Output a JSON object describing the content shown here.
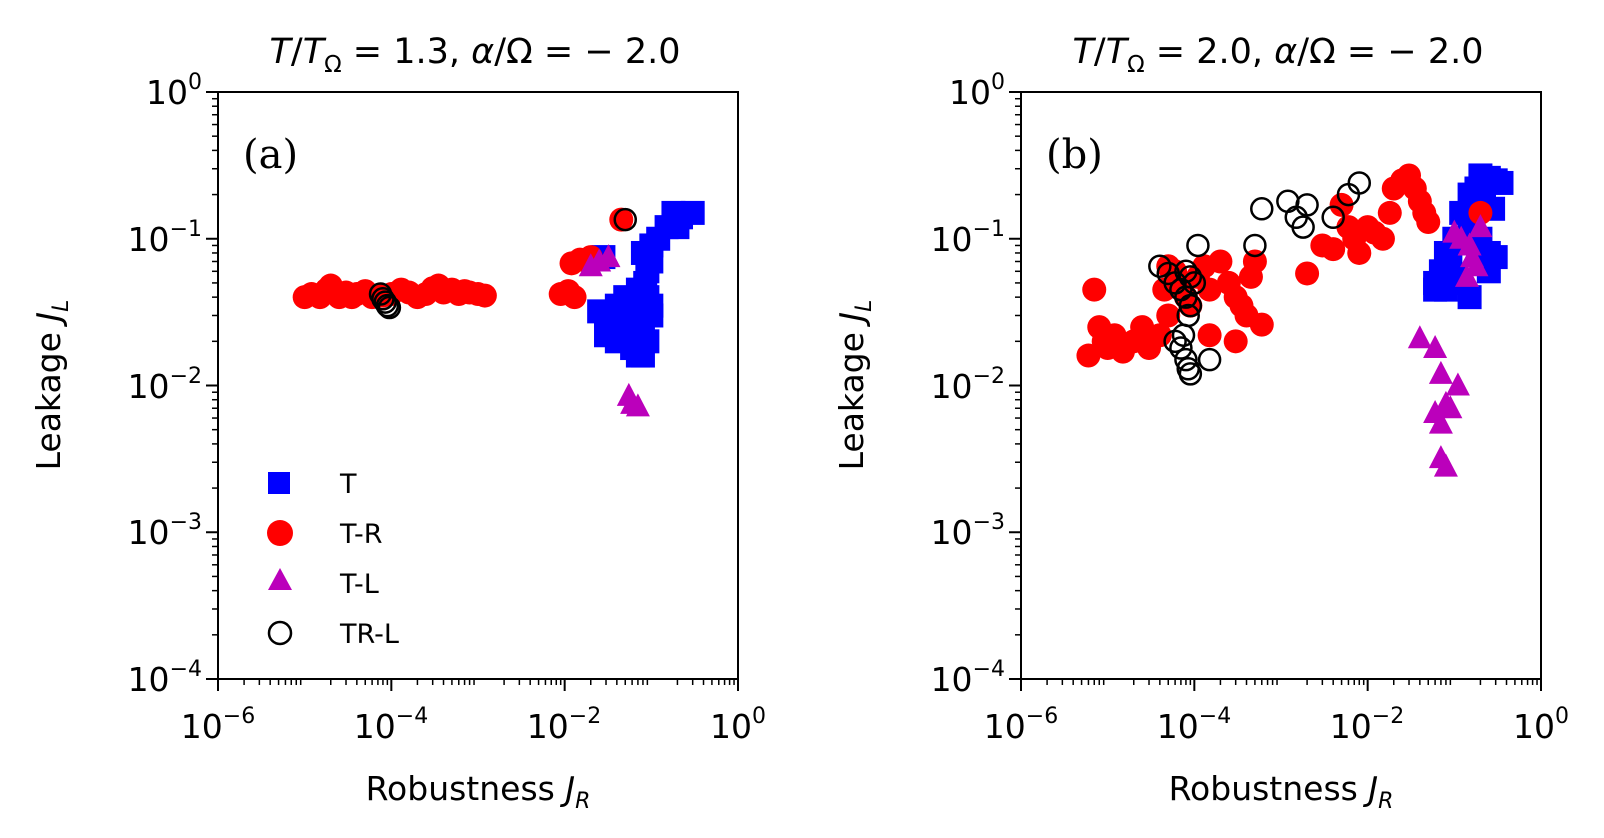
{
  "chart_data": [
    {
      "type": "scatter",
      "id": "a",
      "title_parts": {
        "t1": "T",
        "t2": "/",
        "t3": "T",
        "t3sub": "Ω",
        "t4": " = 1.3, ",
        "t5": "α",
        "t6": "/Ω = − 2.0"
      },
      "panel_label": "(a)",
      "xlabel_text": "Robustness ",
      "xlabel_var": "J",
      "xlabel_sub": "R",
      "ylabel_text": "Leakage ",
      "ylabel_var": "J",
      "ylabel_sub": "L",
      "xscale": "log",
      "yscale": "log",
      "xlim": [
        1e-06,
        1
      ],
      "ylim": [
        0.0001,
        1
      ],
      "x_ticks": [
        {
          "base": "10",
          "exp": "−6",
          "value": 1e-06
        },
        {
          "base": "10",
          "exp": "−4",
          "value": 0.0001
        },
        {
          "base": "10",
          "exp": "−2",
          "value": 0.01
        },
        {
          "base": "10",
          "exp": "0",
          "value": 1
        }
      ],
      "y_ticks": [
        {
          "base": "10",
          "exp": "−4",
          "value": 0.0001
        },
        {
          "base": "10",
          "exp": "−3",
          "value": 0.001
        },
        {
          "base": "10",
          "exp": "−2",
          "value": 0.01
        },
        {
          "base": "10",
          "exp": "−1",
          "value": 0.1
        },
        {
          "base": "10",
          "exp": "0",
          "value": 1
        }
      ],
      "legend_position": "lower-left",
      "series": [
        {
          "name": "T",
          "marker": "square",
          "color": "#0000ff",
          "filled": true,
          "points": [
            [
              0.3,
              0.15
            ],
            [
              0.22,
              0.14
            ],
            [
              0.18,
              0.15
            ],
            [
              0.2,
              0.12
            ],
            [
              0.15,
              0.12
            ],
            [
              0.12,
              0.1
            ],
            [
              0.1,
              0.09
            ],
            [
              0.1,
              0.07
            ],
            [
              0.08,
              0.08
            ],
            [
              0.09,
              0.06
            ],
            [
              0.085,
              0.05
            ],
            [
              0.07,
              0.045
            ],
            [
              0.09,
              0.04
            ],
            [
              0.1,
              0.035
            ],
            [
              0.05,
              0.04
            ],
            [
              0.04,
              0.035
            ],
            [
              0.03,
              0.03
            ],
            [
              0.025,
              0.032
            ],
            [
              0.035,
              0.028
            ],
            [
              0.05,
              0.03
            ],
            [
              0.06,
              0.025
            ],
            [
              0.07,
              0.022
            ],
            [
              0.08,
              0.028
            ],
            [
              0.1,
              0.03
            ],
            [
              0.03,
              0.022
            ],
            [
              0.04,
              0.02
            ],
            [
              0.06,
              0.018
            ],
            [
              0.07,
              0.016
            ],
            [
              0.08,
              0.016
            ],
            [
              0.09,
              0.02
            ],
            [
              0.028,
              0.075
            ]
          ]
        },
        {
          "name": "T-R",
          "marker": "circle",
          "color": "#ff0000",
          "filled": true,
          "points": [
            [
              1e-05,
              0.04
            ],
            [
              1.2e-05,
              0.042
            ],
            [
              1.5e-05,
              0.04
            ],
            [
              1.8e-05,
              0.045
            ],
            [
              2e-05,
              0.048
            ],
            [
              2.5e-05,
              0.04
            ],
            [
              3e-05,
              0.043
            ],
            [
              3.5e-05,
              0.04
            ],
            [
              4e-05,
              0.042
            ],
            [
              5e-05,
              0.044
            ],
            [
              6e-05,
              0.04
            ],
            [
              8e-05,
              0.041
            ],
            [
              0.0001,
              0.042
            ],
            [
              0.00013,
              0.045
            ],
            [
              0.00016,
              0.043
            ],
            [
              0.0002,
              0.04
            ],
            [
              0.00025,
              0.042
            ],
            [
              0.0003,
              0.046
            ],
            [
              0.00035,
              0.048
            ],
            [
              0.0004,
              0.043
            ],
            [
              0.0005,
              0.045
            ],
            [
              0.0006,
              0.042
            ],
            [
              0.0007,
              0.044
            ],
            [
              0.0008,
              0.043
            ],
            [
              0.001,
              0.042
            ],
            [
              0.0012,
              0.041
            ],
            [
              0.009,
              0.042
            ],
            [
              0.011,
              0.044
            ],
            [
              0.013,
              0.04
            ],
            [
              0.012,
              0.068
            ],
            [
              0.015,
              0.072
            ],
            [
              0.02,
              0.075
            ],
            [
              0.045,
              0.135
            ]
          ]
        },
        {
          "name": "T-L",
          "marker": "triangle",
          "color": "#bb00bb",
          "filled": true,
          "points": [
            [
              0.02,
              0.065
            ],
            [
              0.025,
              0.07
            ],
            [
              0.032,
              0.075
            ],
            [
              0.055,
              0.0085
            ],
            [
              0.06,
              0.0075
            ],
            [
              0.07,
              0.0072
            ]
          ]
        },
        {
          "name": "TR-L",
          "marker": "circle",
          "color": "#000000",
          "filled": false,
          "points": [
            [
              7.5e-05,
              0.042
            ],
            [
              8e-05,
              0.039
            ],
            [
              8.5e-05,
              0.037
            ],
            [
              9e-05,
              0.035
            ],
            [
              9.5e-05,
              0.034
            ],
            [
              0.05,
              0.135
            ]
          ]
        }
      ]
    },
    {
      "type": "scatter",
      "id": "b",
      "title_parts": {
        "t1": "T",
        "t2": "/",
        "t3": "T",
        "t3sub": "Ω",
        "t4": " = 2.0, ",
        "t5": "α",
        "t6": "/Ω = − 2.0"
      },
      "panel_label": "(b)",
      "xlabel_text": "Robustness ",
      "xlabel_var": "J",
      "xlabel_sub": "R",
      "ylabel_text": "Leakage ",
      "ylabel_var": "J",
      "ylabel_sub": "L",
      "xscale": "log",
      "yscale": "log",
      "xlim": [
        1e-06,
        1
      ],
      "ylim": [
        0.0001,
        1
      ],
      "x_ticks": [
        {
          "base": "10",
          "exp": "−6",
          "value": 1e-06
        },
        {
          "base": "10",
          "exp": "−4",
          "value": 0.0001
        },
        {
          "base": "10",
          "exp": "−2",
          "value": 0.01
        },
        {
          "base": "10",
          "exp": "0",
          "value": 1
        }
      ],
      "y_ticks": [
        {
          "base": "10",
          "exp": "−4",
          "value": 0.0001
        },
        {
          "base": "10",
          "exp": "−3",
          "value": 0.001
        },
        {
          "base": "10",
          "exp": "−2",
          "value": 0.01
        },
        {
          "base": "10",
          "exp": "−1",
          "value": 0.1
        },
        {
          "base": "10",
          "exp": "0",
          "value": 1
        }
      ],
      "series": [
        {
          "name": "T",
          "marker": "square",
          "color": "#0000ff",
          "filled": true,
          "points": [
            [
              0.2,
              0.27
            ],
            [
              0.25,
              0.26
            ],
            [
              0.3,
              0.25
            ],
            [
              0.35,
              0.24
            ],
            [
              0.15,
              0.2
            ],
            [
              0.18,
              0.22
            ],
            [
              0.22,
              0.18
            ],
            [
              0.28,
              0.16
            ],
            [
              0.12,
              0.15
            ],
            [
              0.15,
              0.12
            ],
            [
              0.2,
              0.1
            ],
            [
              0.25,
              0.08
            ],
            [
              0.1,
              0.1
            ],
            [
              0.08,
              0.08
            ],
            [
              0.07,
              0.06
            ],
            [
              0.06,
              0.05
            ],
            [
              0.08,
              0.045
            ],
            [
              0.1,
              0.055
            ],
            [
              0.12,
              0.05
            ],
            [
              0.15,
              0.04
            ],
            [
              0.06,
              0.045
            ],
            [
              0.09,
              0.07
            ],
            [
              0.25,
              0.06
            ],
            [
              0.3,
              0.075
            ]
          ]
        },
        {
          "name": "T-R",
          "marker": "circle",
          "color": "#ff0000",
          "filled": true,
          "points": [
            [
              6e-06,
              0.016
            ],
            [
              7e-06,
              0.045
            ],
            [
              8e-06,
              0.025
            ],
            [
              9e-06,
              0.02
            ],
            [
              1e-05,
              0.018
            ],
            [
              1.2e-05,
              0.022
            ],
            [
              1.5e-05,
              0.017
            ],
            [
              2e-05,
              0.02
            ],
            [
              2.5e-05,
              0.025
            ],
            [
              3e-05,
              0.018
            ],
            [
              4e-05,
              0.022
            ],
            [
              5e-05,
              0.03
            ],
            [
              4.5e-05,
              0.045
            ],
            [
              5e-05,
              0.065
            ],
            [
              6e-05,
              0.06
            ],
            [
              7e-05,
              0.05
            ],
            [
              8e-05,
              0.04
            ],
            [
              9e-05,
              0.035
            ],
            [
              0.00011,
              0.055
            ],
            [
              0.00013,
              0.065
            ],
            [
              0.00015,
              0.045
            ],
            [
              0.0002,
              0.07
            ],
            [
              0.00025,
              0.05
            ],
            [
              0.0003,
              0.04
            ],
            [
              0.00035,
              0.035
            ],
            [
              0.0004,
              0.03
            ],
            [
              0.00045,
              0.055
            ],
            [
              0.0005,
              0.07
            ],
            [
              0.0006,
              0.026
            ],
            [
              0.00015,
              0.022
            ],
            [
              0.0003,
              0.02
            ],
            [
              0.002,
              0.058
            ],
            [
              0.003,
              0.09
            ],
            [
              0.004,
              0.085
            ],
            [
              0.005,
              0.17
            ],
            [
              0.006,
              0.12
            ],
            [
              0.007,
              0.1
            ],
            [
              0.008,
              0.08
            ],
            [
              0.01,
              0.12
            ],
            [
              0.012,
              0.11
            ],
            [
              0.015,
              0.1
            ],
            [
              0.018,
              0.15
            ],
            [
              0.02,
              0.22
            ],
            [
              0.025,
              0.25
            ],
            [
              0.03,
              0.27
            ],
            [
              0.035,
              0.22
            ],
            [
              0.04,
              0.18
            ],
            [
              0.045,
              0.15
            ],
            [
              0.05,
              0.13
            ],
            [
              0.2,
              0.15
            ]
          ]
        },
        {
          "name": "T-L",
          "marker": "triangle",
          "color": "#bb00bb",
          "filled": true,
          "points": [
            [
              0.04,
              0.021
            ],
            [
              0.06,
              0.018
            ],
            [
              0.07,
              0.012
            ],
            [
              0.08,
              0.0075
            ],
            [
              0.06,
              0.0065
            ],
            [
              0.07,
              0.0055
            ],
            [
              0.09,
              0.007
            ],
            [
              0.11,
              0.01
            ],
            [
              0.07,
              0.0032
            ],
            [
              0.08,
              0.0028
            ],
            [
              0.1,
              0.11
            ],
            [
              0.12,
              0.1
            ],
            [
              0.15,
              0.09
            ],
            [
              0.16,
              0.075
            ],
            [
              0.18,
              0.065
            ],
            [
              0.14,
              0.055
            ],
            [
              0.2,
              0.12
            ]
          ]
        },
        {
          "name": "TR-L",
          "marker": "circle",
          "color": "#000000",
          "filled": false,
          "points": [
            [
              4e-05,
              0.065
            ],
            [
              5e-05,
              0.058
            ],
            [
              6e-05,
              0.05
            ],
            [
              7e-05,
              0.045
            ],
            [
              8e-05,
              0.06
            ],
            [
              9e-05,
              0.055
            ],
            [
              0.0001,
              0.05
            ],
            [
              0.00011,
              0.09
            ],
            [
              8e-05,
              0.04
            ],
            [
              9e-05,
              0.035
            ],
            [
              8.5e-05,
              0.03
            ],
            [
              6e-05,
              0.02
            ],
            [
              7e-05,
              0.018
            ],
            [
              8e-05,
              0.015
            ],
            [
              8.5e-05,
              0.013
            ],
            [
              9e-05,
              0.012
            ],
            [
              7.5e-05,
              0.022
            ],
            [
              0.00015,
              0.015
            ],
            [
              0.0005,
              0.09
            ],
            [
              0.0006,
              0.16
            ],
            [
              0.0012,
              0.18
            ],
            [
              0.0015,
              0.14
            ],
            [
              0.0018,
              0.12
            ],
            [
              0.002,
              0.17
            ],
            [
              0.004,
              0.14
            ],
            [
              0.006,
              0.2
            ],
            [
              0.008,
              0.24
            ]
          ]
        }
      ]
    }
  ],
  "legend": {
    "items": [
      {
        "label": "T",
        "marker": "square",
        "color": "#0000ff",
        "filled": true
      },
      {
        "label": "T-R",
        "marker": "circle",
        "color": "#ff0000",
        "filled": true
      },
      {
        "label": "T-L",
        "marker": "triangle",
        "color": "#bb00bb",
        "filled": true
      },
      {
        "label": "TR-L",
        "marker": "circle",
        "color": "#000000",
        "filled": false
      }
    ]
  }
}
